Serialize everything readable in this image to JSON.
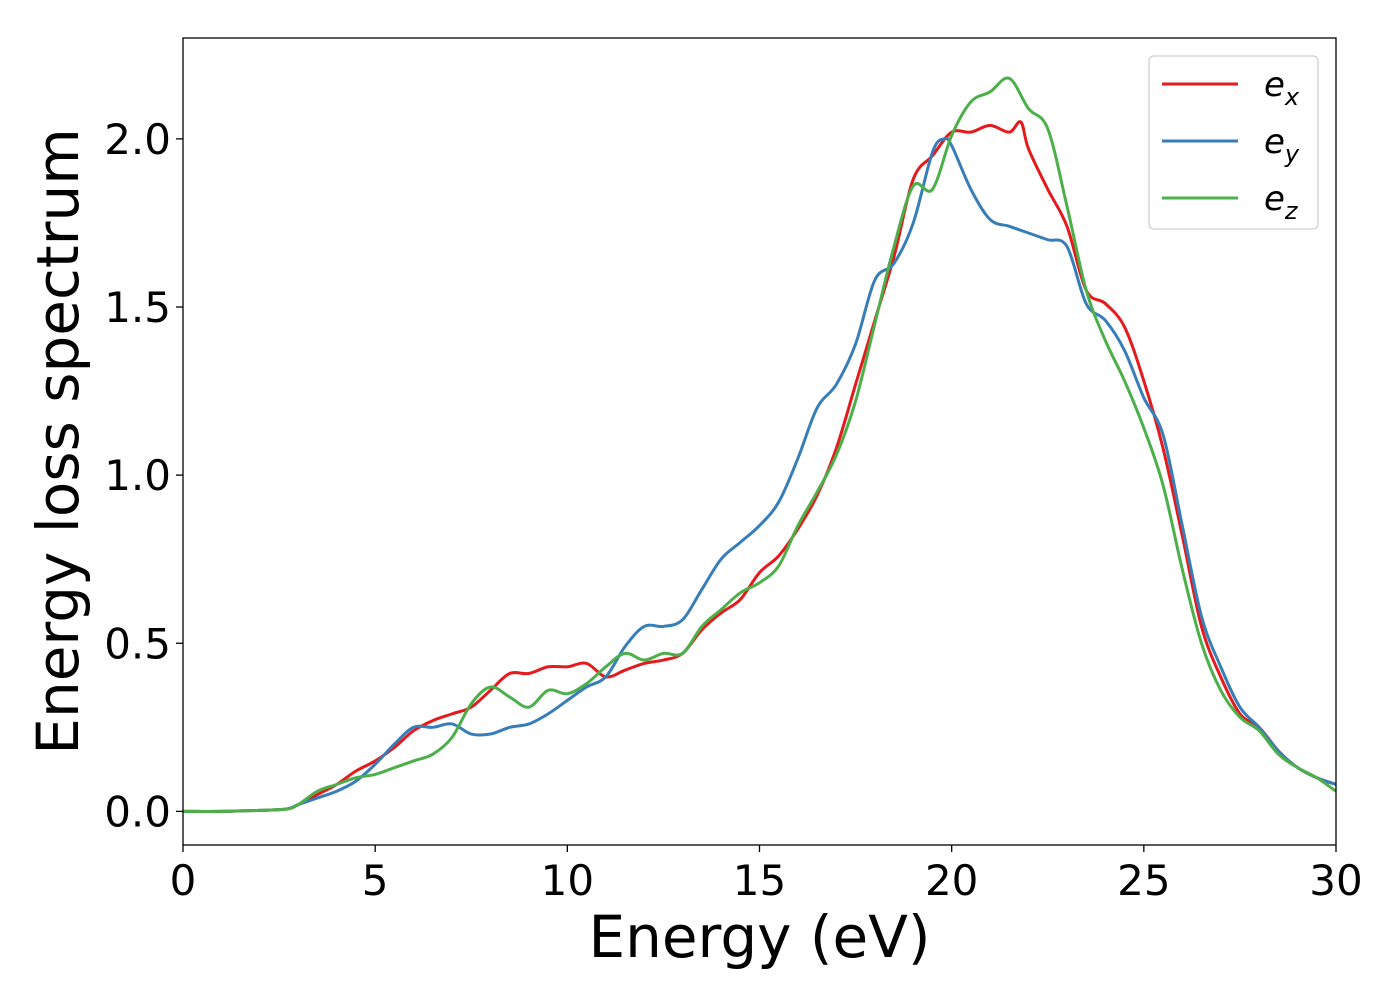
{
  "chart_data": {
    "type": "line",
    "xlabel": "Energy (eV)",
    "ylabel": "Energy loss spectrum",
    "xlim": [
      0,
      30
    ],
    "ylim": [
      -0.1,
      2.3
    ],
    "xticks": [
      0,
      5,
      10,
      15,
      20,
      25,
      30
    ],
    "xtick_labels": [
      "0",
      "5",
      "10",
      "15",
      "20",
      "25",
      "30"
    ],
    "yticks": [
      0.0,
      0.5,
      1.0,
      1.5,
      2.0
    ],
    "ytick_labels": [
      "0.0",
      "0.5",
      "1.0",
      "1.5",
      "2.0"
    ],
    "grid": false,
    "legend_position": "top-right",
    "series": [
      {
        "name": "e_x",
        "label_base": "e",
        "label_sub": "x",
        "color": "#e41a1c",
        "x": [
          0,
          1,
          2,
          2.7,
          3.0,
          3.5,
          4.0,
          4.5,
          5.0,
          5.5,
          6.0,
          6.5,
          7.0,
          7.5,
          8.0,
          8.5,
          9.0,
          9.5,
          10.0,
          10.5,
          11.0,
          11.5,
          12.0,
          12.5,
          13.0,
          13.5,
          14.0,
          14.5,
          15.0,
          15.5,
          16.0,
          16.5,
          17.0,
          17.5,
          18.0,
          18.5,
          19.0,
          19.5,
          20.0,
          20.5,
          21.0,
          21.5,
          21.8,
          22.0,
          22.5,
          23.0,
          23.5,
          24.0,
          24.5,
          25.0,
          25.5,
          26.0,
          26.5,
          27.0,
          27.5,
          28.0,
          28.5,
          29.0,
          29.5,
          30.0
        ],
        "values": [
          0.0,
          0.0,
          0.003,
          0.007,
          0.02,
          0.05,
          0.08,
          0.12,
          0.15,
          0.19,
          0.24,
          0.27,
          0.29,
          0.31,
          0.36,
          0.41,
          0.41,
          0.43,
          0.43,
          0.44,
          0.4,
          0.42,
          0.44,
          0.45,
          0.47,
          0.54,
          0.59,
          0.63,
          0.71,
          0.76,
          0.84,
          0.94,
          1.08,
          1.27,
          1.46,
          1.65,
          1.88,
          1.95,
          2.02,
          2.02,
          2.04,
          2.02,
          2.05,
          1.97,
          1.85,
          1.74,
          1.55,
          1.51,
          1.44,
          1.28,
          1.08,
          0.82,
          0.55,
          0.4,
          0.29,
          0.25,
          0.18,
          0.13,
          0.1,
          0.08
        ]
      },
      {
        "name": "e_y",
        "label_base": "e",
        "label_sub": "y",
        "color": "#377eb8",
        "x": [
          0,
          1,
          2,
          2.7,
          3.0,
          3.5,
          4.0,
          4.5,
          5.0,
          5.5,
          6.0,
          6.5,
          7.0,
          7.5,
          8.0,
          8.5,
          9.0,
          9.5,
          10.0,
          10.5,
          11.0,
          11.5,
          12.0,
          12.5,
          13.0,
          13.5,
          14.0,
          14.5,
          15.0,
          15.5,
          16.0,
          16.5,
          17.0,
          17.5,
          18.0,
          18.5,
          19.0,
          19.5,
          19.8,
          20.0,
          20.5,
          21.0,
          21.5,
          22.0,
          22.5,
          23.0,
          23.5,
          24.0,
          24.5,
          25.0,
          25.5,
          26.0,
          26.5,
          27.0,
          27.5,
          28.0,
          28.5,
          29.0,
          29.5,
          30.0
        ],
        "values": [
          0.0,
          0.0,
          0.003,
          0.007,
          0.02,
          0.04,
          0.06,
          0.09,
          0.14,
          0.2,
          0.25,
          0.25,
          0.26,
          0.23,
          0.23,
          0.25,
          0.26,
          0.29,
          0.33,
          0.37,
          0.4,
          0.49,
          0.55,
          0.55,
          0.57,
          0.66,
          0.75,
          0.8,
          0.85,
          0.92,
          1.05,
          1.2,
          1.27,
          1.39,
          1.58,
          1.63,
          1.75,
          1.96,
          2.0,
          1.98,
          1.85,
          1.76,
          1.74,
          1.72,
          1.7,
          1.68,
          1.51,
          1.46,
          1.37,
          1.23,
          1.12,
          0.85,
          0.58,
          0.43,
          0.31,
          0.25,
          0.18,
          0.13,
          0.1,
          0.08
        ]
      },
      {
        "name": "e_z",
        "label_base": "e",
        "label_sub": "z",
        "color": "#4daf4a",
        "x": [
          0,
          1,
          2,
          2.7,
          3.0,
          3.5,
          4.0,
          4.5,
          5.0,
          5.5,
          6.0,
          6.5,
          7.0,
          7.5,
          8.0,
          8.5,
          9.0,
          9.5,
          10.0,
          10.5,
          11.0,
          11.5,
          12.0,
          12.5,
          13.0,
          13.5,
          14.0,
          14.5,
          15.0,
          15.5,
          16.0,
          16.5,
          17.0,
          17.5,
          18.0,
          18.5,
          19.0,
          19.5,
          20.0,
          20.5,
          21.0,
          21.5,
          22.0,
          22.5,
          23.0,
          23.5,
          24.0,
          24.5,
          25.0,
          25.5,
          26.0,
          26.5,
          27.0,
          27.5,
          28.0,
          28.5,
          29.0,
          29.5,
          30.0
        ],
        "values": [
          0.0,
          0.0,
          0.003,
          0.007,
          0.02,
          0.06,
          0.08,
          0.1,
          0.11,
          0.13,
          0.15,
          0.17,
          0.22,
          0.32,
          0.37,
          0.34,
          0.31,
          0.36,
          0.35,
          0.38,
          0.43,
          0.47,
          0.45,
          0.47,
          0.47,
          0.55,
          0.6,
          0.65,
          0.68,
          0.73,
          0.85,
          0.95,
          1.06,
          1.22,
          1.45,
          1.68,
          1.86,
          1.85,
          2.01,
          2.11,
          2.14,
          2.18,
          2.09,
          2.03,
          1.8,
          1.55,
          1.4,
          1.28,
          1.14,
          0.97,
          0.72,
          0.5,
          0.36,
          0.28,
          0.24,
          0.17,
          0.13,
          0.1,
          0.06
        ]
      }
    ]
  }
}
